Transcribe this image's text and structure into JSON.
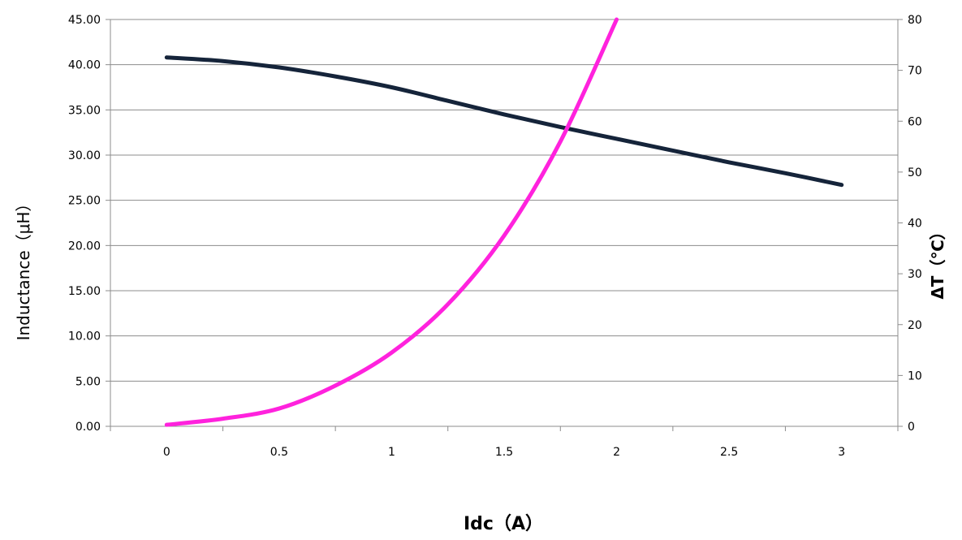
{
  "chart_data": {
    "type": "line",
    "xlabel": "Idc（A）",
    "ylabel_left": "Inductance（μH）",
    "ylabel_right": "ΔT（℃）",
    "x_categories": [
      "0",
      "0.5",
      "1",
      "1.5",
      "2",
      "2.5",
      "3"
    ],
    "x_range": [
      -0.25,
      3.25
    ],
    "y_left_range": [
      0,
      45
    ],
    "y_left_ticks": [
      "0.00",
      "5.00",
      "10.00",
      "15.00",
      "20.00",
      "25.00",
      "30.00",
      "35.00",
      "40.00",
      "45.00"
    ],
    "y_right_range": [
      0,
      80
    ],
    "y_right_ticks": [
      "0",
      "10",
      "20",
      "30",
      "40",
      "50",
      "60",
      "70",
      "80"
    ],
    "grid": true,
    "series": [
      {
        "axis": "left",
        "color": "#15243a",
        "x": [
          0,
          0.25,
          0.5,
          0.75,
          1,
          1.25,
          1.5,
          1.75,
          2,
          2.25,
          2.5,
          2.75,
          3
        ],
        "values": [
          40.8,
          40.4,
          39.7,
          38.7,
          37.5,
          36.0,
          34.5,
          33.1,
          31.8,
          30.5,
          29.2,
          28.0,
          26.7
        ]
      },
      {
        "axis": "right",
        "color": "#ff22dd",
        "x": [
          0,
          0.25,
          0.5,
          0.75,
          1,
          1.25,
          1.5,
          1.75,
          2
        ],
        "values": [
          0.3,
          1.5,
          3.5,
          8.0,
          14.5,
          24.0,
          37.5,
          56.0,
          80.0
        ]
      }
    ]
  }
}
